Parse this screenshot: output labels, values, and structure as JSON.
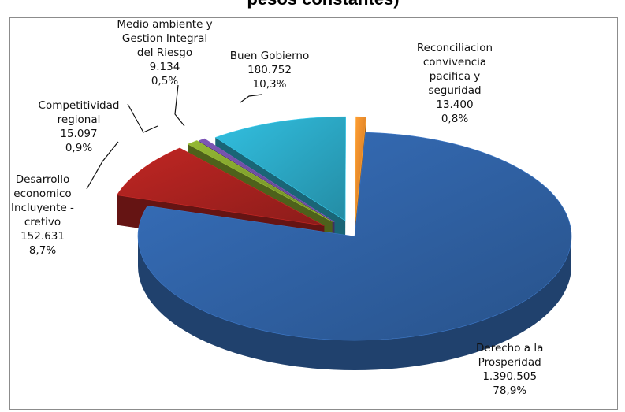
{
  "chart_data": {
    "type": "pie",
    "title_fragment": "pesos constantes)",
    "slices": [
      {
        "label_lines": [
          "Derecho a la",
          "Prosperidad"
        ],
        "value": "1.390.505",
        "percent": "78,9%",
        "number": 1390505,
        "color": "#2f5fa0"
      },
      {
        "label_lines": [
          "Desarrollo",
          "economico",
          "Incluyente -",
          "cretivo"
        ],
        "value": "152.631",
        "percent": "8,7%",
        "number": 152631,
        "color": "#a3201e"
      },
      {
        "label_lines": [
          "Competitividad",
          "regional"
        ],
        "value": "15.097",
        "percent": "0,9%",
        "number": 15097,
        "color": "#7d9c2c"
      },
      {
        "label_lines": [
          "Medio ambiente y",
          "Gestion Integral",
          "del Riesgo"
        ],
        "value": "9.134",
        "percent": "0,5%",
        "number": 9134,
        "color": "#6a4a9a"
      },
      {
        "label_lines": [
          "Buen Gobierno"
        ],
        "value": "180.752",
        "percent": "10,3%",
        "number": 180752,
        "color": "#2aa3bf"
      },
      {
        "label_lines": [
          "Reconciliacion",
          "convivencia",
          "pacifica y",
          "seguridad"
        ],
        "value": "13.400",
        "percent": "0,8%",
        "number": 13400,
        "color": "#e8862a"
      }
    ],
    "style": "3d-exploded-pie",
    "legend": "none"
  }
}
